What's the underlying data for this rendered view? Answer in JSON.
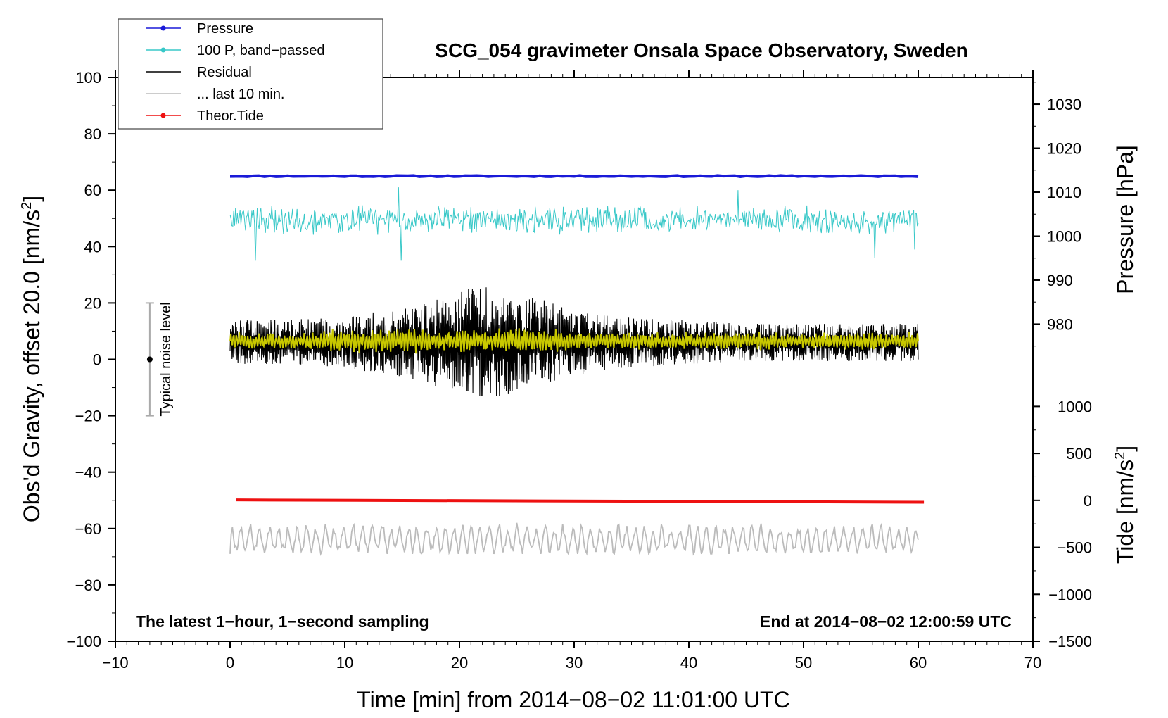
{
  "colors": {
    "pressure": "#1a1ad8",
    "band_passed": "#38c8c8",
    "residual": "#000000",
    "last10": "#bbbbbb",
    "theor_tide": "#ee1111",
    "yellow_overlay": "#c8c800"
  },
  "chart_data": {
    "type": "line",
    "title": "SCG_054 gravimeter Onsala Space Observatory, Sweden",
    "xlabel": "Time [min] from 2014−08−02 11:01:00 UTC",
    "ylabel_left": "Obs'd Gravity, offset 20.0 [nm/s",
    "ylabel_left_sup": "2",
    "ylabel_left_end": "]",
    "ylabel_right_top": "Pressure [hPa]",
    "ylabel_right_bottom": "Tide [nm/s",
    "ylabel_right_bottom_sup": "2",
    "ylabel_right_bottom_end": "]",
    "xlim": [
      -10,
      70
    ],
    "ylim_left": [
      -100,
      100
    ],
    "xticks": [
      -10,
      0,
      10,
      20,
      30,
      40,
      50,
      60,
      70
    ],
    "xtick_labels": [
      "−10",
      "0",
      "10",
      "20",
      "30",
      "40",
      "50",
      "60",
      "70"
    ],
    "yticks_left": [
      -100,
      -80,
      -60,
      -40,
      -20,
      0,
      20,
      40,
      60,
      80,
      100
    ],
    "ytick_labels_left": [
      "−100",
      "−80",
      "−60",
      "−40",
      "−20",
      "0",
      "20",
      "40",
      "60",
      "80",
      "100"
    ],
    "pressure_axis": {
      "ticks": [
        980,
        990,
        1000,
        1010,
        1020,
        1030
      ],
      "tick_labels": [
        "980",
        "990",
        "1000",
        "1010",
        "1020",
        "1030"
      ],
      "left_equiv": [
        [
          980,
          12.5
        ],
        [
          1030,
          90.5
        ]
      ]
    },
    "tide_axis": {
      "ticks": [
        -1500,
        -1000,
        -500,
        0,
        500,
        1000
      ],
      "tick_labels": [
        "−1500",
        "−1000",
        "−500",
        "0",
        "500",
        "1000"
      ],
      "left_equiv": [
        [
          -1500,
          -100
        ],
        [
          1000,
          -16.7
        ]
      ]
    },
    "legend": {
      "placement": "top-left",
      "entries": [
        {
          "label": "Pressure",
          "color_key": "pressure",
          "marker": true
        },
        {
          "label": "100 P, band−passed",
          "color_key": "band_passed",
          "marker": true
        },
        {
          "label": "Residual",
          "color_key": "residual",
          "marker": false
        },
        {
          "label": "... last 10 min.",
          "color_key": "last10",
          "marker": false
        },
        {
          "label": "Theor.Tide",
          "color_key": "theor_tide",
          "marker": true
        }
      ]
    },
    "annotations": {
      "bottom_left": "The latest 1−hour, 1−second sampling",
      "bottom_right": "End at 2014−08−02 12:00:59 UTC",
      "noise_label": "Typical noise level",
      "noise_bar": {
        "x": -7,
        "center": 0,
        "low": -20,
        "high": 20
      }
    },
    "series": [
      {
        "name": "Pressure",
        "axis": "pressure",
        "x_range": [
          0,
          60
        ],
        "level_hpa": 1011.0,
        "plotted_level": 65,
        "approx_noise_nm_s2": 0.3
      },
      {
        "name": "100 P, band-passed",
        "axis": "left",
        "x_range": [
          0,
          60
        ],
        "baseline": 49.5,
        "typical_amplitude": 4,
        "spikes": [
          {
            "x": 2.2,
            "y": 35
          },
          {
            "x": 14.7,
            "y": 61
          },
          {
            "x": 14.9,
            "y": 35
          },
          {
            "x": 44.3,
            "y": 60
          },
          {
            "x": 56.2,
            "y": 36
          },
          {
            "x": 59.7,
            "y": 39
          }
        ]
      },
      {
        "name": "Residual",
        "axis": "left",
        "x_range": [
          0,
          60
        ],
        "baseline": 6,
        "envelope": [
          {
            "x": 0,
            "amp": 7
          },
          {
            "x": 10,
            "amp": 8
          },
          {
            "x": 17,
            "amp": 13
          },
          {
            "x": 22,
            "amp": 19
          },
          {
            "x": 26,
            "amp": 15
          },
          {
            "x": 32,
            "amp": 9
          },
          {
            "x": 45,
            "amp": 6
          },
          {
            "x": 60,
            "amp": 6
          }
        ],
        "max": 27,
        "min": -13
      },
      {
        "name": "Residual (yellow overlay)",
        "axis": "left",
        "x_range": [
          0,
          60
        ],
        "baseline": 6.5,
        "typical_amplitude": 3
      },
      {
        "name": "... last 10 min.",
        "axis": "left",
        "x_range": [
          0,
          60
        ],
        "baseline": -64,
        "typical_amplitude": 5,
        "min": -69,
        "max": -54
      },
      {
        "name": "Theor.Tide",
        "axis": "tide",
        "points": [
          {
            "x": 0.5,
            "y": 5
          },
          {
            "x": 60.5,
            "y": -20
          }
        ]
      }
    ]
  }
}
